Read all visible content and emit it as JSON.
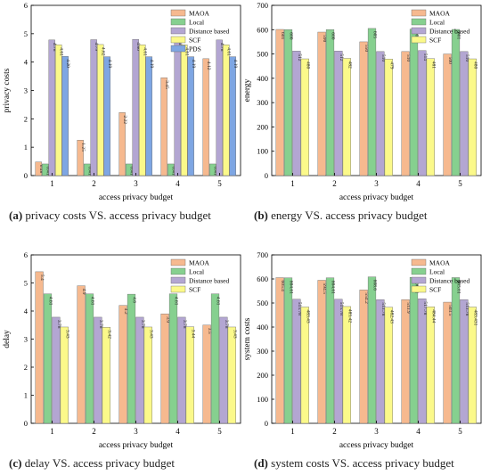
{
  "figure": {
    "captions": [
      {
        "label": "(a)",
        "text": " privacy costs VS. access privacy budget"
      },
      {
        "label": "(b)",
        "text": " energy VS. access privacy budget"
      },
      {
        "label": "(c)",
        "text": " delay VS. access privacy budget"
      },
      {
        "label": "(d)",
        "text": " system costs VS. access privacy budget"
      }
    ]
  },
  "chart_data": [
    {
      "id": "a",
      "type": "bar",
      "xlabel": "access privacy budget",
      "ylabel": "privacy costs",
      "categories": [
        "1",
        "2",
        "3",
        "4",
        "5"
      ],
      "ylim": [
        0,
        6
      ],
      "yticks": [
        0,
        1,
        2,
        3,
        4,
        5,
        6
      ],
      "legend_position": "top-right",
      "series": [
        {
          "name": "MAOA",
          "color": "#f6b98f",
          "values": [
            0.48,
            1.25,
            2.22,
            3.45,
            4.12
          ],
          "labels": [
            "0.48",
            "1.25",
            "2.22",
            "3.45",
            "4.12"
          ]
        },
        {
          "name": "Local",
          "color": "#86d08f",
          "values": [
            0.41,
            0.41,
            0.41,
            0.41,
            0.41
          ],
          "labels": [
            "0.41",
            "0.41",
            "0.41",
            "0.41",
            "0.41"
          ]
        },
        {
          "name": "Distance based",
          "color": "#b3a6d2",
          "values": [
            4.78,
            4.79,
            4.8,
            4.8,
            4.78
          ],
          "labels": [
            "4.78",
            "4.79",
            "4.80",
            "4.80",
            "4.78"
          ]
        },
        {
          "name": "SCF",
          "color": "#fbf98a",
          "values": [
            4.61,
            4.62,
            4.61,
            4.61,
            4.61
          ],
          "labels": [
            "4.61",
            "4.62",
            "4.61",
            "4.61",
            "4.61"
          ]
        },
        {
          "name": "PDS",
          "color": "#7ea6e3",
          "values": [
            4.2,
            4.19,
            4.19,
            4.19,
            4.19
          ],
          "labels": [
            "4.20",
            "4.19",
            "4.19",
            "4.19",
            "4.19"
          ]
        }
      ]
    },
    {
      "id": "b",
      "type": "bar",
      "xlabel": "access privacy budget",
      "ylabel": "energy",
      "categories": [
        "1",
        "2",
        "3",
        "4",
        "5"
      ],
      "ylim": [
        0,
        700
      ],
      "yticks": [
        0,
        100,
        200,
        300,
        400,
        500,
        600,
        700
      ],
      "legend_position": "top-right",
      "series": [
        {
          "name": "MAOA",
          "color": "#f6b98f",
          "values": [
            601,
            590,
            550,
            510,
            500
          ],
          "labels": [
            "601",
            "590",
            "550",
            "510",
            "500"
          ]
        },
        {
          "name": "Local",
          "color": "#86d08f",
          "values": [
            600,
            600,
            605,
            602,
            601
          ],
          "labels": [
            "600",
            "600",
            "605",
            "602",
            "601"
          ]
        },
        {
          "name": "Distance based",
          "color": "#b3a6d2",
          "values": [
            512,
            512,
            510,
            514,
            510
          ],
          "labels": [
            "512",
            "512",
            "510",
            "514",
            "510"
          ]
        },
        {
          "name": "SCF",
          "color": "#fbf98a",
          "values": [
            480,
            482,
            479,
            481,
            480
          ],
          "labels": [
            "480",
            "482",
            "479",
            "481",
            "480"
          ]
        }
      ]
    },
    {
      "id": "c",
      "type": "bar",
      "xlabel": "access privacy budget",
      "ylabel": "delay",
      "categories": [
        "1",
        "2",
        "3",
        "4",
        "5"
      ],
      "ylim": [
        0,
        6
      ],
      "yticks": [
        0,
        1,
        2,
        3,
        4,
        5,
        6
      ],
      "legend_position": "top-right",
      "series": [
        {
          "name": "MAOA",
          "color": "#f6b98f",
          "values": [
            5.4,
            4.9,
            4.2,
            3.9,
            3.5
          ],
          "labels": [
            "5.4",
            "4.9",
            "4.2",
            "3.9",
            "3.5"
          ]
        },
        {
          "name": "Local",
          "color": "#86d08f",
          "values": [
            4.61,
            4.61,
            4.6,
            4.61,
            4.61
          ],
          "labels": [
            "4.61",
            "4.61",
            "4.6",
            "4.61",
            "4.61"
          ]
        },
        {
          "name": "Distance based",
          "color": "#b3a6d2",
          "values": [
            3.78,
            3.78,
            3.78,
            3.78,
            3.78
          ],
          "labels": [
            "3.78",
            "3.78",
            "3.78",
            "3.78",
            "3.78"
          ]
        },
        {
          "name": "SCF",
          "color": "#fbf98a",
          "values": [
            3.43,
            3.42,
            3.43,
            3.44,
            3.43
          ],
          "labels": [
            "3.43",
            "3.42",
            "3.43",
            "3.44",
            "3.43"
          ]
        }
      ]
    },
    {
      "id": "d",
      "type": "bar",
      "xlabel": "access privacy budget",
      "ylabel": "system costs",
      "categories": [
        "1",
        "2",
        "3",
        "4",
        "5"
      ],
      "ylim": [
        0,
        700
      ],
      "yticks": [
        0,
        100,
        200,
        300,
        400,
        500,
        600,
        700
      ],
      "legend_position": "top-right",
      "series": [
        {
          "name": "MAOA",
          "color": "#f6b98f",
          "values": [
            605.4,
            594.5,
            554.2,
            513.9,
            503.5
          ],
          "labels": [
            "605.4",
            "594.5",
            "554.2",
            "513.9",
            "503.5"
          ]
        },
        {
          "name": "Local",
          "color": "#86d08f",
          "values": [
            604.61,
            604.61,
            608.6,
            606.61,
            605.61
          ],
          "labels": [
            "604.61",
            "604.61",
            "608.6",
            "606.61",
            "605.61"
          ]
        },
        {
          "name": "Distance based",
          "color": "#b3a6d2",
          "values": [
            515.78,
            515.78,
            513.78,
            517.78,
            513.78
          ],
          "labels": [
            "515.78",
            "515.78",
            "513.78",
            "517.78",
            "513.78"
          ]
        },
        {
          "name": "SCF",
          "color": "#fbf98a",
          "values": [
            483.43,
            485.42,
            482.43,
            484.44,
            483.431
          ],
          "labels": [
            "483.43",
            "485.42",
            "482.43",
            "484.44",
            "483.431"
          ]
        }
      ]
    }
  ]
}
